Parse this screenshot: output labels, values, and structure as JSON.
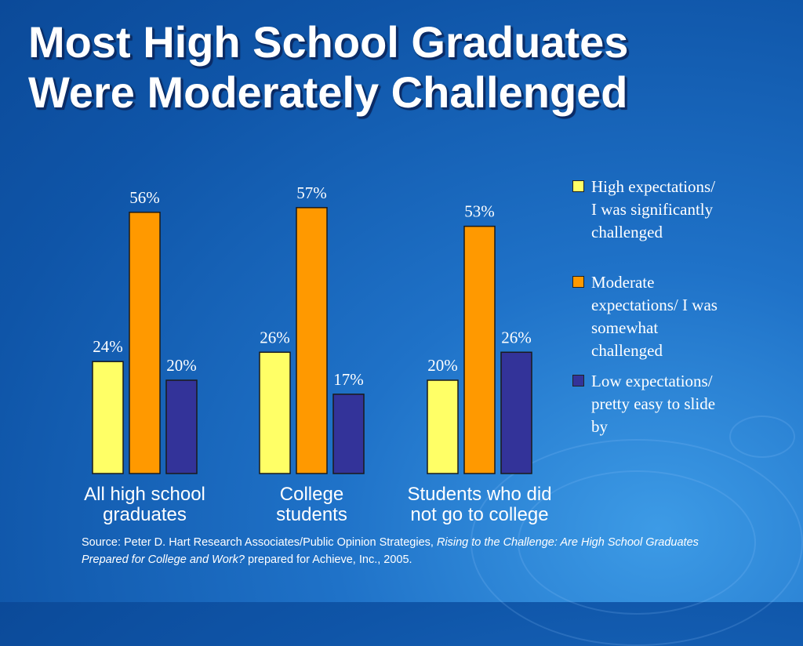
{
  "slide": {
    "title_line1": "Most High School Graduates",
    "title_line2": "Were Moderately Challenged",
    "source_prefix": "Source: Peter D. Hart Research Associates/Public Opinion Strategies, ",
    "source_italic": "Rising to the Challenge: Are High School Graduates Prepared for College and Work?",
    "source_suffix": " prepared for Achieve, Inc., 2005."
  },
  "chart_data": {
    "type": "bar",
    "title": "Most High School Graduates Were Moderately Challenged",
    "categories": [
      [
        "All high school",
        "graduates"
      ],
      [
        "College",
        "students"
      ],
      [
        "Students who did",
        "not go to college"
      ]
    ],
    "series": [
      {
        "name": "High expectations/ I was significantly challenged",
        "values": [
          24,
          26,
          20
        ],
        "labels": [
          "24%",
          "26%",
          "20%"
        ],
        "color": "#ffff66"
      },
      {
        "name": "Moderate expectations/ I was somewhat challenged",
        "values": [
          56,
          57,
          53
        ],
        "labels": [
          "56%",
          "57%",
          "53%"
        ],
        "color": "#ff9900"
      },
      {
        "name": "Low expectations/ pretty easy to slide by",
        "values": [
          20,
          17,
          26
        ],
        "labels": [
          "20%",
          "17%",
          "26%"
        ],
        "color": "#333399"
      }
    ],
    "legend_lines": [
      [
        "High expectations/",
        "I was significantly",
        "challenged"
      ],
      [
        "Moderate",
        "expectations/ I was",
        "somewhat",
        "challenged"
      ],
      [
        "Low expectations/",
        "pretty easy to slide",
        "by"
      ]
    ],
    "ylim": [
      0,
      60
    ],
    "grid": false,
    "legend_position": "right"
  }
}
